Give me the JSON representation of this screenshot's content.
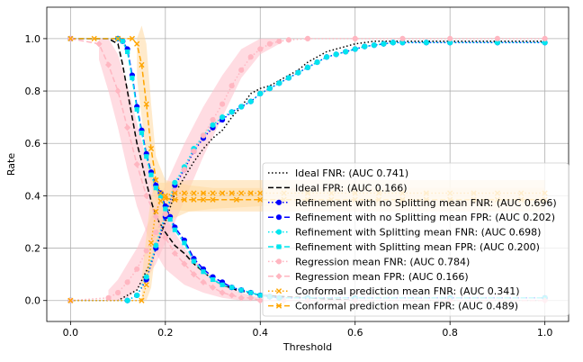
{
  "chart_data": {
    "type": "line",
    "title": "",
    "xlabel": "Threshold",
    "ylabel": "Rate",
    "xlim": [
      -0.05,
      1.05
    ],
    "ylim": [
      -0.08,
      1.12
    ],
    "xticks": [
      0.0,
      0.2,
      0.4,
      0.6,
      0.8,
      1.0
    ],
    "xtick_labels": [
      "0.0",
      "0.2",
      "0.4",
      "0.6",
      "0.8",
      "1.0"
    ],
    "yticks": [
      0.0,
      0.2,
      0.4,
      0.6,
      0.8,
      1.0
    ],
    "ytick_labels": [
      "0.0",
      "0.2",
      "0.4",
      "0.6",
      "0.8",
      "1.0"
    ],
    "grid": true,
    "legend_position": "lower-right",
    "bands": [
      {
        "name": "Regression FNR band",
        "color": "#ffc0cb",
        "x": [
          0.08,
          0.1,
          0.12,
          0.14,
          0.16,
          0.18,
          0.2,
          0.24,
          0.28,
          0.32,
          0.36,
          0.4,
          0.44
        ],
        "lower": [
          0,
          0,
          0.01,
          0.04,
          0.08,
          0.14,
          0.22,
          0.38,
          0.55,
          0.7,
          0.85,
          0.94,
          0.98
        ],
        "upper": [
          0.04,
          0.08,
          0.14,
          0.2,
          0.28,
          0.36,
          0.44,
          0.6,
          0.74,
          0.86,
          0.96,
          1.0,
          1.0
        ]
      },
      {
        "name": "Regression FPR band",
        "color": "#ffc0cb",
        "x": [
          0.06,
          0.08,
          0.1,
          0.12,
          0.14,
          0.16,
          0.18,
          0.2,
          0.24,
          0.28,
          0.32,
          0.36,
          0.4
        ],
        "lower": [
          0.92,
          0.8,
          0.66,
          0.5,
          0.36,
          0.26,
          0.18,
          0.12,
          0.06,
          0.03,
          0.01,
          0,
          0
        ],
        "upper": [
          1.0,
          1.0,
          0.94,
          0.82,
          0.68,
          0.54,
          0.42,
          0.32,
          0.2,
          0.12,
          0.06,
          0.03,
          0.01
        ]
      },
      {
        "name": "Conformal FNR band",
        "color": "#ffd9a0",
        "x": [
          0.15,
          0.16,
          0.17,
          0.18,
          0.2,
          0.25,
          0.3,
          0.4,
          0.5,
          0.6,
          0.7,
          0.8,
          0.9,
          1.0
        ],
        "lower": [
          0,
          0,
          0.05,
          0.2,
          0.3,
          0.34,
          0.35,
          0.36,
          0.36,
          0.36,
          0.36,
          0.36,
          0.36,
          0.36
        ],
        "upper": [
          0.08,
          0.25,
          0.4,
          0.45,
          0.45,
          0.46,
          0.46,
          0.46,
          0.46,
          0.46,
          0.46,
          0.46,
          0.46,
          0.46
        ]
      },
      {
        "name": "Conformal FPR band",
        "color": "#ffd9a0",
        "x": [
          0.14,
          0.15,
          0.16,
          0.17,
          0.18,
          0.2,
          0.25,
          0.3,
          0.4,
          0.5,
          0.6,
          0.7,
          0.8,
          0.9,
          1.0
        ],
        "lower": [
          0.85,
          0.7,
          0.55,
          0.44,
          0.38,
          0.35,
          0.34,
          0.34,
          0.34,
          0.34,
          0.34,
          0.34,
          0.34,
          0.34,
          0.34
        ],
        "upper": [
          1.0,
          1.05,
          0.98,
          0.75,
          0.55,
          0.46,
          0.44,
          0.43,
          0.43,
          0.43,
          0.43,
          0.43,
          0.43,
          0.43,
          0.43
        ]
      }
    ],
    "series": [
      {
        "name": "Ideal FNR: (AUC 0.741)",
        "color": "#000000",
        "dash": "1.5,2.5",
        "marker": "none",
        "x": [
          0,
          0.1,
          0.14,
          0.17,
          0.2,
          0.22,
          0.24,
          0.26,
          0.28,
          0.3,
          0.32,
          0.34,
          0.36,
          0.38,
          0.4,
          0.42,
          0.44,
          0.46,
          0.48,
          0.5,
          0.52,
          0.54,
          0.56,
          0.58,
          0.6,
          0.62,
          0.64,
          0.66,
          0.7,
          0.75,
          0.8,
          1.0
        ],
        "values": [
          0,
          0,
          0.04,
          0.15,
          0.3,
          0.41,
          0.47,
          0.53,
          0.58,
          0.62,
          0.65,
          0.7,
          0.74,
          0.79,
          0.81,
          0.82,
          0.84,
          0.86,
          0.88,
          0.91,
          0.93,
          0.95,
          0.96,
          0.97,
          0.98,
          0.985,
          0.99,
          0.99,
          0.99,
          0.99,
          0.99,
          0.99
        ]
      },
      {
        "name": "Ideal FPR: (AUC 0.166)",
        "color": "#000000",
        "dash": "6,3",
        "marker": "none",
        "x": [
          0,
          0.08,
          0.1,
          0.11,
          0.12,
          0.13,
          0.14,
          0.15,
          0.16,
          0.17,
          0.18,
          0.2,
          0.22,
          0.24,
          0.26,
          0.28,
          0.3,
          0.32,
          0.35,
          0.4,
          0.5,
          0.6,
          0.8,
          1.0
        ],
        "values": [
          1,
          1,
          0.98,
          0.9,
          0.8,
          0.7,
          0.6,
          0.53,
          0.45,
          0.38,
          0.32,
          0.26,
          0.21,
          0.18,
          0.14,
          0.11,
          0.08,
          0.06,
          0.04,
          0.02,
          0.01,
          0,
          0,
          0
        ]
      },
      {
        "name": "Refinement with no Splitting mean FNR: (AUC 0.696)",
        "color": "#0000ff",
        "dash": "1.5,2.5",
        "marker": "circle",
        "x": [
          0,
          0.12,
          0.14,
          0.16,
          0.18,
          0.2,
          0.22,
          0.24,
          0.26,
          0.28,
          0.3,
          0.32,
          0.34,
          0.36,
          0.38,
          0.4,
          0.42,
          0.44,
          0.46,
          0.48,
          0.5,
          0.52,
          0.54,
          0.56,
          0.58,
          0.6,
          0.62,
          0.64,
          0.66,
          0.68,
          0.7,
          0.75,
          0.8,
          0.9,
          1.0
        ],
        "values": [
          0,
          0,
          0.02,
          0.08,
          0.2,
          0.32,
          0.44,
          0.5,
          0.57,
          0.62,
          0.66,
          0.69,
          0.72,
          0.74,
          0.76,
          0.79,
          0.81,
          0.83,
          0.85,
          0.87,
          0.89,
          0.91,
          0.93,
          0.94,
          0.95,
          0.96,
          0.97,
          0.975,
          0.98,
          0.985,
          0.985,
          0.985,
          0.985,
          0.985,
          0.985
        ]
      },
      {
        "name": "Refinement with no Splitting mean FPR: (AUC 0.202)",
        "color": "#0000ff",
        "dash": "6,3",
        "marker": "circle",
        "x": [
          0,
          0.1,
          0.11,
          0.12,
          0.13,
          0.14,
          0.15,
          0.16,
          0.17,
          0.18,
          0.19,
          0.2,
          0.21,
          0.22,
          0.24,
          0.26,
          0.28,
          0.3,
          0.32,
          0.34,
          0.36,
          0.38,
          0.4,
          0.42,
          0.44,
          0.5,
          0.6,
          0.8,
          1.0
        ],
        "values": [
          1,
          1,
          0.99,
          0.96,
          0.86,
          0.74,
          0.65,
          0.56,
          0.49,
          0.44,
          0.41,
          0.36,
          0.32,
          0.28,
          0.23,
          0.16,
          0.12,
          0.09,
          0.07,
          0.05,
          0.04,
          0.03,
          0.02,
          0.015,
          0.01,
          0.01,
          0.01,
          0.01,
          0.01
        ]
      },
      {
        "name": "Refinement with Splitting mean FNR: (AUC 0.698)",
        "color": "#00e5ee",
        "dash": "1.5,2.5",
        "marker": "circle",
        "x": [
          0,
          0.12,
          0.14,
          0.16,
          0.18,
          0.2,
          0.22,
          0.24,
          0.26,
          0.28,
          0.3,
          0.32,
          0.34,
          0.36,
          0.38,
          0.4,
          0.42,
          0.44,
          0.46,
          0.48,
          0.5,
          0.52,
          0.54,
          0.56,
          0.58,
          0.6,
          0.62,
          0.64,
          0.66,
          0.68,
          0.7,
          0.75,
          0.8,
          0.9,
          1.0
        ],
        "values": [
          0,
          0,
          0.02,
          0.09,
          0.21,
          0.33,
          0.45,
          0.51,
          0.58,
          0.63,
          0.67,
          0.7,
          0.72,
          0.74,
          0.76,
          0.79,
          0.81,
          0.83,
          0.85,
          0.87,
          0.89,
          0.91,
          0.93,
          0.94,
          0.95,
          0.96,
          0.97,
          0.975,
          0.98,
          0.985,
          0.985,
          0.985,
          0.985,
          0.985,
          0.985
        ]
      },
      {
        "name": "Refinement with Splitting mean FPR: (AUC 0.200)",
        "color": "#00e5ee",
        "dash": "6,3",
        "marker": "square",
        "x": [
          0,
          0.1,
          0.11,
          0.12,
          0.13,
          0.14,
          0.15,
          0.16,
          0.17,
          0.18,
          0.19,
          0.2,
          0.21,
          0.22,
          0.24,
          0.26,
          0.28,
          0.3,
          0.32,
          0.34,
          0.36,
          0.38,
          0.4,
          0.42,
          0.44,
          0.5,
          0.6,
          0.8,
          1.0
        ],
        "values": [
          1,
          1,
          0.99,
          0.95,
          0.85,
          0.73,
          0.64,
          0.55,
          0.48,
          0.43,
          0.4,
          0.35,
          0.31,
          0.27,
          0.22,
          0.15,
          0.11,
          0.08,
          0.06,
          0.05,
          0.04,
          0.03,
          0.02,
          0.015,
          0.01,
          0.01,
          0.01,
          0.01,
          0.01
        ]
      },
      {
        "name": "Regression mean FNR: (AUC 0.784)",
        "color": "#ffb6c1",
        "dash": "1.5,2.5",
        "marker": "circle",
        "x": [
          0,
          0.08,
          0.1,
          0.12,
          0.14,
          0.16,
          0.18,
          0.2,
          0.22,
          0.24,
          0.26,
          0.28,
          0.3,
          0.32,
          0.34,
          0.36,
          0.38,
          0.4,
          0.42,
          0.44,
          0.46,
          0.5,
          0.6,
          0.7,
          0.8,
          0.9,
          1.0
        ],
        "values": [
          0,
          0.01,
          0.03,
          0.07,
          0.12,
          0.19,
          0.26,
          0.33,
          0.42,
          0.5,
          0.57,
          0.63,
          0.69,
          0.75,
          0.82,
          0.88,
          0.93,
          0.96,
          0.98,
          0.99,
          0.995,
          1,
          1,
          1,
          1,
          1,
          1
        ]
      },
      {
        "name": "Regression mean FPR: (AUC 0.166)",
        "color": "#ffb6c1",
        "dash": "6,3",
        "marker": "diamond",
        "x": [
          0,
          0.06,
          0.08,
          0.1,
          0.12,
          0.14,
          0.16,
          0.18,
          0.2,
          0.22,
          0.24,
          0.26,
          0.28,
          0.3,
          0.32,
          0.34,
          0.36,
          0.38,
          0.4,
          0.45,
          0.5,
          0.6,
          0.8,
          1.0
        ],
        "values": [
          1,
          0.98,
          0.9,
          0.8,
          0.66,
          0.52,
          0.4,
          0.32,
          0.24,
          0.18,
          0.14,
          0.1,
          0.07,
          0.05,
          0.03,
          0.02,
          0.01,
          0.01,
          0,
          0,
          0,
          0,
          0,
          0
        ]
      },
      {
        "name": "Conformal prediction mean FNR: (AUC 0.341)",
        "color": "#ffa500",
        "dash": "1.5,2.5",
        "marker": "x",
        "x": [
          0,
          0.15,
          0.16,
          0.17,
          0.18,
          0.19,
          0.2,
          0.22,
          0.24,
          0.26,
          0.28,
          0.3,
          0.32,
          0.34,
          0.36,
          0.38,
          0.4,
          0.45,
          0.5,
          0.55,
          0.6,
          0.65,
          0.7,
          0.75,
          0.8,
          0.85,
          0.9,
          0.95,
          1.0
        ],
        "values": [
          0,
          0,
          0.06,
          0.22,
          0.34,
          0.38,
          0.4,
          0.41,
          0.41,
          0.41,
          0.41,
          0.41,
          0.41,
          0.41,
          0.41,
          0.41,
          0.41,
          0.41,
          0.41,
          0.41,
          0.41,
          0.41,
          0.41,
          0.41,
          0.41,
          0.41,
          0.41,
          0.41,
          0.41
        ]
      },
      {
        "name": "Conformal prediction mean FPR: (AUC 0.489)",
        "color": "#ffa500",
        "dash": "6,3",
        "marker": "x",
        "x": [
          0,
          0.05,
          0.1,
          0.13,
          0.14,
          0.15,
          0.16,
          0.17,
          0.18,
          0.19,
          0.2,
          0.22,
          0.24,
          0.26,
          0.28,
          0.3,
          0.35,
          0.4,
          0.45,
          0.5,
          0.55,
          0.6,
          0.65,
          0.7,
          0.75,
          0.8,
          0.85,
          0.9,
          0.95,
          1.0
        ],
        "values": [
          1,
          1,
          1,
          1,
          0.98,
          0.9,
          0.75,
          0.58,
          0.46,
          0.41,
          0.39,
          0.385,
          0.385,
          0.385,
          0.385,
          0.385,
          0.385,
          0.385,
          0.385,
          0.385,
          0.385,
          0.385,
          0.385,
          0.385,
          0.385,
          0.385,
          0.385,
          0.385,
          0.385,
          0.385
        ]
      }
    ],
    "legend": [
      "Ideal FNR: (AUC 0.741)",
      "Ideal FPR: (AUC 0.166)",
      "Refinement with no Splitting mean FNR: (AUC 0.696)",
      "Refinement with no Splitting mean FPR: (AUC 0.202)",
      "Refinement with Splitting mean FNR: (AUC 0.698)",
      "Refinement with Splitting mean FPR: (AUC 0.200)",
      "Regression mean FNR: (AUC 0.784)",
      "Regression mean FPR: (AUC 0.166)",
      "Conformal prediction mean FNR: (AUC 0.341)",
      "Conformal prediction mean FPR: (AUC 0.489)"
    ]
  }
}
